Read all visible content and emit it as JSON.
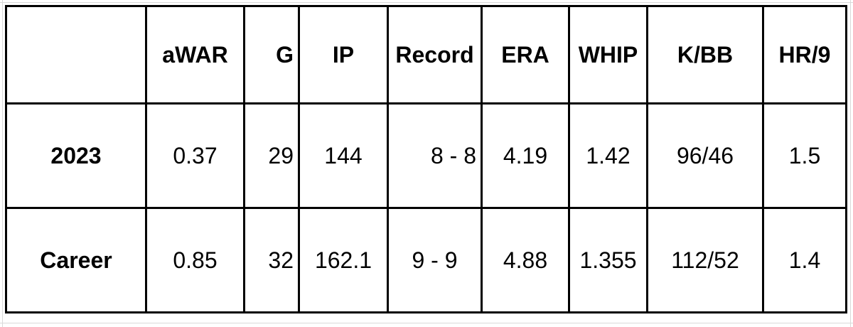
{
  "table": {
    "columns": [
      "aWAR",
      "G",
      "IP",
      "Record",
      "ERA",
      "WHIP",
      "K/BB",
      "HR/9"
    ],
    "rows": [
      {
        "label": "2023",
        "cells": [
          "0.37",
          "29",
          "144",
          "8 - 8",
          "4.19",
          "1.42",
          "96/46",
          "1.5"
        ]
      },
      {
        "label": "Career",
        "cells": [
          "0.85",
          "32",
          "162.1",
          "9 - 9",
          "4.88",
          "1.355",
          "112/52",
          "1.4"
        ]
      }
    ]
  }
}
